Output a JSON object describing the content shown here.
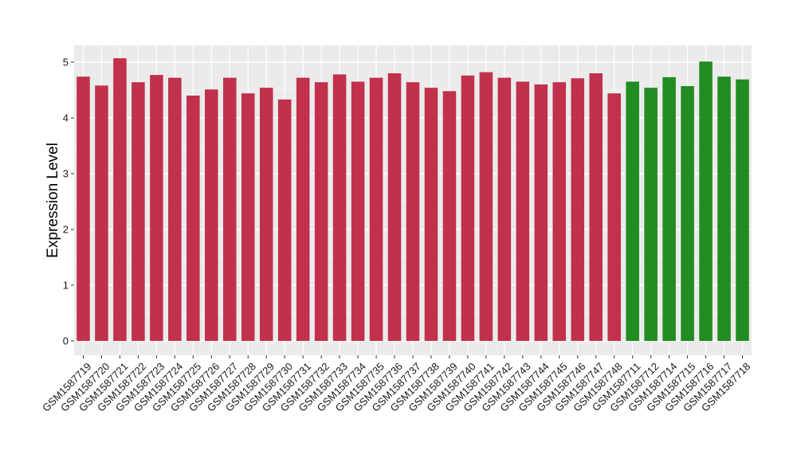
{
  "chart_data": {
    "type": "bar",
    "title": "",
    "xlabel": "",
    "ylabel": "Expression Level",
    "ylim": [
      0,
      5.3
    ],
    "yticks": [
      0,
      1,
      2,
      3,
      4,
      5
    ],
    "grid": true,
    "legend": "none",
    "colors": {
      "group_a": "#C1314B",
      "group_b": "#228B22",
      "panel_bg": "#EBEBEB",
      "grid": "#FFFFFF"
    },
    "categories": [
      "GSM1587719",
      "GSM1587720",
      "GSM1587721",
      "GSM1587722",
      "GSM1587723",
      "GSM1587724",
      "GSM1587725",
      "GSM1587726",
      "GSM1587727",
      "GSM1587728",
      "GSM1587729",
      "GSM1587730",
      "GSM1587731",
      "GSM1587732",
      "GSM1587733",
      "GSM1587734",
      "GSM1587735",
      "GSM1587736",
      "GSM1587737",
      "GSM1587738",
      "GSM1587739",
      "GSM1587740",
      "GSM1587741",
      "GSM1587742",
      "GSM1587743",
      "GSM1587744",
      "GSM1587745",
      "GSM1587746",
      "GSM1587747",
      "GSM1587748",
      "GSM1587711",
      "GSM1587712",
      "GSM1587714",
      "GSM1587715",
      "GSM1587716",
      "GSM1587717",
      "GSM1587718"
    ],
    "values": [
      4.74,
      4.58,
      5.07,
      4.64,
      4.77,
      4.72,
      4.4,
      4.51,
      4.72,
      4.44,
      4.54,
      4.33,
      4.72,
      4.64,
      4.78,
      4.65,
      4.72,
      4.8,
      4.64,
      4.54,
      4.48,
      4.76,
      4.82,
      4.72,
      4.65,
      4.6,
      4.64,
      4.71,
      4.8,
      4.44,
      4.65,
      4.54,
      4.73,
      4.57,
      5.01,
      4.74,
      4.69
    ],
    "groups": [
      "group_a",
      "group_a",
      "group_a",
      "group_a",
      "group_a",
      "group_a",
      "group_a",
      "group_a",
      "group_a",
      "group_a",
      "group_a",
      "group_a",
      "group_a",
      "group_a",
      "group_a",
      "group_a",
      "group_a",
      "group_a",
      "group_a",
      "group_a",
      "group_a",
      "group_a",
      "group_a",
      "group_a",
      "group_a",
      "group_a",
      "group_a",
      "group_a",
      "group_a",
      "group_a",
      "group_b",
      "group_b",
      "group_b",
      "group_b",
      "group_b",
      "group_b",
      "group_b"
    ]
  }
}
